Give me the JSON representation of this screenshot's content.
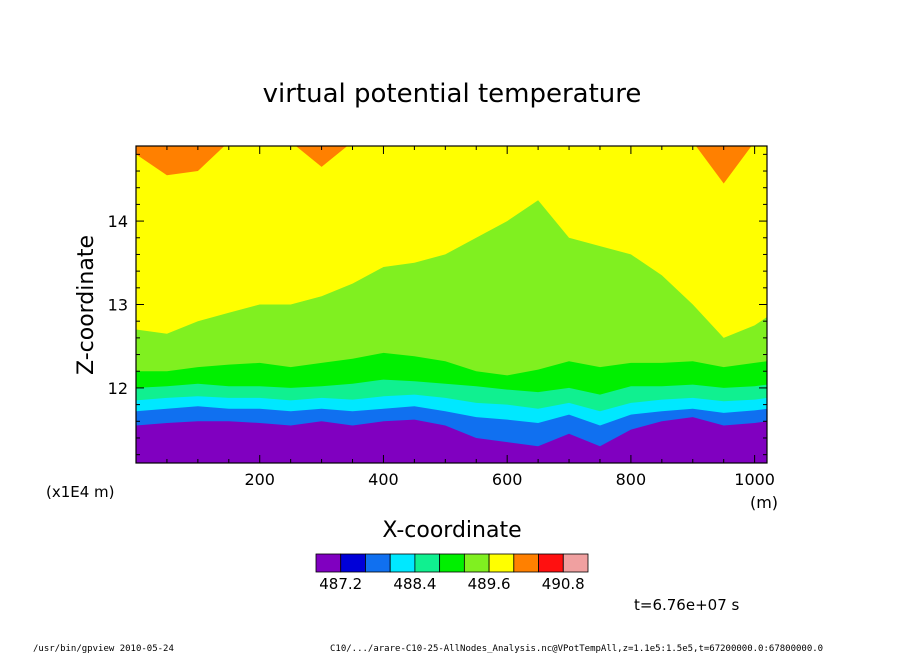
{
  "chart_data": {
    "type": "heatmap",
    "title": "virtual potential temperature",
    "xlabel": "X-coordinate",
    "ylabel": "Z-coordinate",
    "x_unit": "(m)",
    "y_scale_label": "(x1E4 m)",
    "xlim": [
      0,
      1020
    ],
    "ylim": [
      11.1,
      14.9
    ],
    "x_ticks": [
      200,
      400,
      600,
      800,
      1000
    ],
    "y_ticks": [
      12,
      13,
      14
    ],
    "colorbar": {
      "levels": [
        486.8,
        487.2,
        487.6,
        488.0,
        488.4,
        488.8,
        489.2,
        489.6,
        490.0,
        490.4,
        490.8,
        491.2
      ],
      "labels": [
        "487.2",
        "488.4",
        "489.6",
        "490.8"
      ],
      "label_values": [
        487.2,
        488.4,
        489.6,
        490.8
      ],
      "colors": [
        "#8000c0",
        "#0000d8",
        "#1070f0",
        "#00e8ff",
        "#10f090",
        "#00f000",
        "#80f020",
        "#ffff00",
        "#ff8000",
        "#ff1010",
        "#f0a0a0"
      ]
    },
    "contour_bands": {
      "x": [
        0,
        50,
        100,
        150,
        200,
        250,
        300,
        350,
        400,
        450,
        500,
        550,
        600,
        650,
        700,
        750,
        800,
        850,
        900,
        950,
        1000,
        1020
      ],
      "boundaries": [
        {
          "above_level": 487.6,
          "z": [
            11.55,
            11.58,
            11.6,
            11.6,
            11.58,
            11.55,
            11.6,
            11.55,
            11.6,
            11.62,
            11.55,
            11.4,
            11.35,
            11.3,
            11.45,
            11.3,
            11.5,
            11.6,
            11.65,
            11.55,
            11.58,
            11.6
          ]
        },
        {
          "above_level": 488.0,
          "z": [
            11.72,
            11.75,
            11.78,
            11.75,
            11.75,
            11.72,
            11.75,
            11.72,
            11.75,
            11.78,
            11.72,
            11.65,
            11.62,
            11.58,
            11.68,
            11.55,
            11.68,
            11.72,
            11.75,
            11.7,
            11.73,
            11.75
          ]
        },
        {
          "above_level": 488.4,
          "z": [
            11.85,
            11.88,
            11.9,
            11.88,
            11.88,
            11.85,
            11.88,
            11.86,
            11.9,
            11.92,
            11.88,
            11.82,
            11.8,
            11.75,
            11.82,
            11.72,
            11.82,
            11.86,
            11.88,
            11.84,
            11.86,
            11.88
          ]
        },
        {
          "above_level": 488.8,
          "z": [
            12.0,
            12.02,
            12.05,
            12.02,
            12.02,
            12.0,
            12.02,
            12.05,
            12.1,
            12.08,
            12.05,
            12.02,
            11.98,
            11.95,
            12.0,
            11.92,
            12.02,
            12.02,
            12.04,
            12.0,
            12.02,
            12.04
          ]
        },
        {
          "above_level": 489.2,
          "z": [
            12.2,
            12.2,
            12.25,
            12.28,
            12.3,
            12.25,
            12.3,
            12.35,
            12.42,
            12.38,
            12.32,
            12.2,
            12.15,
            12.22,
            12.32,
            12.25,
            12.3,
            12.3,
            12.32,
            12.25,
            12.3,
            12.32
          ]
        },
        {
          "above_level": 489.6,
          "z": [
            12.7,
            12.65,
            12.8,
            12.9,
            13.0,
            13.0,
            13.1,
            13.25,
            13.45,
            13.5,
            13.6,
            13.8,
            14.0,
            14.25,
            13.8,
            13.7,
            13.6,
            13.35,
            13.0,
            12.6,
            12.75,
            12.85
          ]
        },
        {
          "above_level": 490.0,
          "z": [
            14.8,
            14.55,
            14.6,
            14.95,
            14.95,
            14.95,
            14.65,
            14.95,
            14.95,
            14.95,
            14.95,
            14.95,
            14.95,
            14.95,
            14.95,
            14.95,
            14.95,
            14.95,
            14.95,
            14.45,
            14.95,
            14.95
          ]
        }
      ]
    }
  },
  "footer": {
    "command": "/usr/bin/gpview  2010-05-24",
    "source": "C10/.../arare-C10-25-AllNodes_Analysis.nc@VPotTempAll,z=1.1e5:1.5e5,t=67200000.0:67800000.0",
    "time_label": "t=6.76e+07 s"
  }
}
